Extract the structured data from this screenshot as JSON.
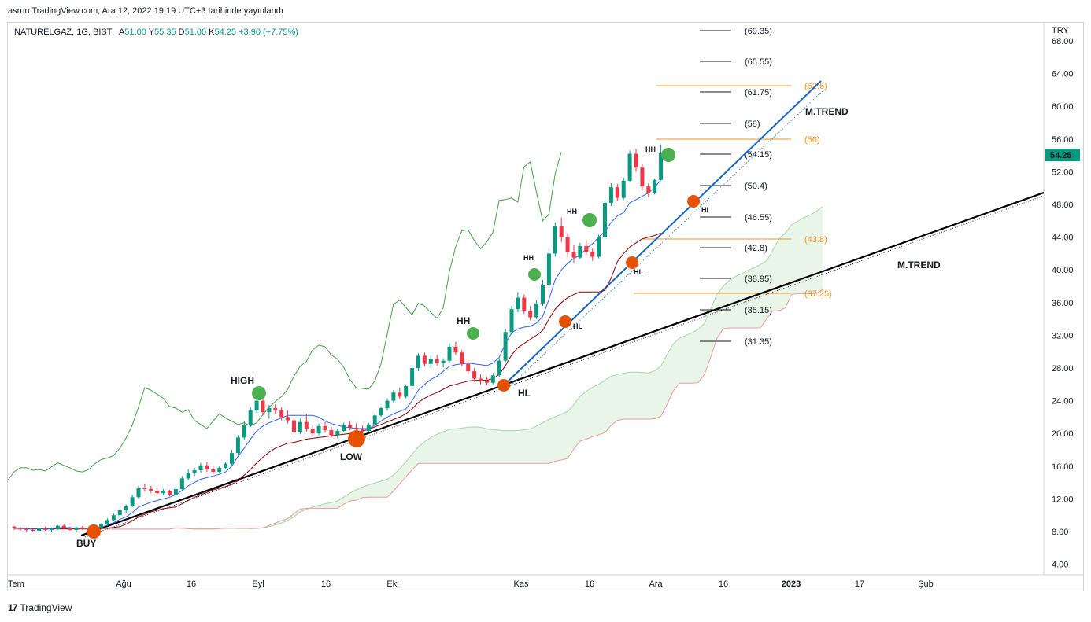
{
  "header": {
    "published": "asrnn TradingView.com, Ara 12, 2022 19:19 UTC+3 tarihinde yayınlandı"
  },
  "legend": {
    "symbol": "NATURELGAZ, 1G, BIST",
    "o_label": "A",
    "o_value": "51.00",
    "h_label": "Y",
    "h_value": "55.35",
    "l_label": "D",
    "l_value": "51.00",
    "c_label": "K",
    "c_value": "54.25",
    "change": "+3.90 (+7.75%)"
  },
  "currency": "TRY",
  "footer": {
    "brand": "TradingView"
  },
  "colors": {
    "up": "#089981",
    "down": "#f23645",
    "tenkan": "#2962ff",
    "kijun": "#8b0000",
    "chikou": "#43a047",
    "fib": "#f7931a",
    "cloud": "#e6f4e6",
    "trend": "#000000",
    "price_tag": "#089981"
  },
  "chart_data": {
    "type": "candlestick",
    "symbol": "NATURELGAZ",
    "ylim": [
      3,
      70
    ],
    "y_ticks": [
      "4.00",
      "8.00",
      "12.00",
      "16.00",
      "20.00",
      "24.00",
      "28.00",
      "32.00",
      "36.00",
      "40.00",
      "44.00",
      "48.00",
      "52.00",
      "56.00",
      "60.00",
      "64.00",
      "68.00"
    ],
    "x_ticks": [
      "Tem",
      "Ağu",
      "16",
      "Eyl",
      "16",
      "Eki",
      "Kas",
      "16",
      "Ara",
      "16",
      "2023",
      "17",
      "Şub"
    ],
    "last_price": "54.25",
    "levels": [
      "(69.35)",
      "(65.55)",
      "(61.75)",
      "(58)",
      "(54.15)",
      "(50.4)",
      "(46.55)",
      "(42.8)",
      "(38.95)",
      "(35.15)",
      "(31.35)"
    ],
    "level_values": [
      69.35,
      65.55,
      61.75,
      58,
      54.15,
      50.4,
      46.55,
      42.8,
      38.95,
      35.15,
      31.35
    ],
    "fib_levels": [
      "(62.6)",
      "(56)",
      "(43.8)",
      "(37.25)"
    ],
    "fib_values": [
      62.6,
      56,
      43.8,
      37.25
    ],
    "annotations": {
      "buy": "BUY",
      "high": "HIGH",
      "low": "LOW",
      "hl": "HL",
      "hh": "HH",
      "trend_black": "M.TREND",
      "trend_blue": "M.TREND"
    },
    "candles": [
      [
        8.6,
        8.7,
        8.2,
        8.4
      ],
      [
        8.4,
        8.6,
        8.1,
        8.3
      ],
      [
        8.3,
        8.5,
        8.0,
        8.2
      ],
      [
        8.2,
        8.4,
        7.9,
        8.1
      ],
      [
        8.1,
        8.5,
        8.0,
        8.4
      ],
      [
        8.4,
        8.6,
        8.1,
        8.2
      ],
      [
        8.2,
        8.5,
        8.0,
        8.3
      ],
      [
        8.3,
        8.8,
        8.2,
        8.7
      ],
      [
        8.7,
        8.9,
        8.3,
        8.4
      ],
      [
        8.4,
        8.6,
        8.1,
        8.2
      ],
      [
        8.2,
        8.6,
        8.0,
        8.5
      ],
      [
        8.5,
        8.7,
        8.2,
        8.3
      ],
      [
        8.3,
        8.5,
        7.9,
        8.0
      ],
      [
        8.0,
        8.5,
        7.9,
        8.4
      ],
      [
        8.4,
        9.0,
        8.3,
        8.9
      ],
      [
        8.9,
        9.6,
        8.7,
        9.4
      ],
      [
        9.4,
        10.2,
        9.3,
        10.0
      ],
      [
        10.0,
        10.8,
        9.8,
        10.6
      ],
      [
        10.6,
        11.3,
        10.3,
        11.1
      ],
      [
        11.1,
        12.5,
        11.0,
        12.2
      ],
      [
        12.2,
        13.6,
        12.0,
        13.3
      ],
      [
        13.3,
        13.8,
        12.9,
        13.2
      ],
      [
        13.2,
        13.6,
        12.7,
        13.0
      ],
      [
        13.0,
        13.3,
        12.5,
        12.7
      ],
      [
        12.7,
        13.2,
        12.4,
        13.0
      ],
      [
        13.0,
        13.1,
        12.3,
        12.5
      ],
      [
        12.5,
        13.5,
        12.4,
        13.2
      ],
      [
        13.2,
        14.8,
        13.0,
        14.5
      ],
      [
        14.5,
        15.6,
        14.3,
        15.2
      ],
      [
        15.2,
        15.8,
        14.8,
        15.5
      ],
      [
        15.5,
        16.4,
        15.2,
        16.1
      ],
      [
        16.1,
        16.5,
        15.3,
        15.6
      ],
      [
        15.6,
        16.0,
        15.0,
        15.3
      ],
      [
        15.3,
        16.0,
        15.1,
        15.8
      ],
      [
        15.8,
        16.5,
        15.6,
        16.3
      ],
      [
        16.3,
        18.0,
        16.1,
        17.6
      ],
      [
        17.6,
        19.8,
        17.4,
        19.5
      ],
      [
        19.5,
        21.5,
        19.2,
        21.0
      ],
      [
        21.0,
        23.2,
        20.8,
        22.8
      ],
      [
        22.8,
        24.8,
        22.5,
        24.0
      ],
      [
        24.0,
        24.5,
        22.2,
        22.6
      ],
      [
        22.6,
        23.5,
        21.8,
        23.1
      ],
      [
        23.1,
        23.6,
        22.4,
        22.8
      ],
      [
        22.8,
        23.2,
        21.6,
        22.0
      ],
      [
        22.0,
        22.8,
        21.2,
        21.6
      ],
      [
        21.6,
        22.0,
        19.8,
        20.2
      ],
      [
        20.2,
        21.8,
        19.9,
        21.4
      ],
      [
        21.4,
        22.4,
        20.2,
        20.6
      ],
      [
        20.6,
        21.0,
        19.6,
        20.0
      ],
      [
        20.0,
        21.2,
        19.8,
        20.9
      ],
      [
        20.9,
        21.4,
        20.1,
        20.4
      ],
      [
        20.4,
        20.8,
        19.5,
        19.8
      ],
      [
        19.8,
        20.6,
        19.4,
        20.3
      ],
      [
        20.3,
        21.3,
        20.1,
        21.0
      ],
      [
        21.0,
        21.5,
        20.4,
        20.7
      ],
      [
        20.7,
        21.2,
        20.2,
        20.5
      ],
      [
        20.5,
        21.0,
        19.9,
        20.3
      ],
      [
        20.3,
        21.3,
        20.1,
        21.1
      ],
      [
        21.1,
        22.5,
        21.0,
        22.2
      ],
      [
        22.2,
        23.3,
        22.0,
        23.1
      ],
      [
        23.1,
        24.3,
        22.8,
        24.0
      ],
      [
        24.0,
        25.3,
        23.8,
        25.0
      ],
      [
        25.0,
        25.6,
        24.2,
        24.5
      ],
      [
        24.5,
        26.0,
        24.3,
        25.8
      ],
      [
        25.8,
        28.3,
        25.6,
        28.0
      ],
      [
        28.0,
        29.8,
        27.6,
        29.5
      ],
      [
        29.5,
        29.9,
        28.2,
        28.5
      ],
      [
        28.5,
        29.5,
        28.0,
        29.1
      ],
      [
        29.1,
        29.6,
        28.3,
        28.6
      ],
      [
        28.6,
        29.2,
        28.1,
        28.9
      ],
      [
        28.9,
        31.0,
        28.7,
        30.6
      ],
      [
        30.6,
        31.2,
        29.6,
        29.9
      ],
      [
        29.9,
        30.2,
        28.2,
        28.5
      ],
      [
        28.5,
        29.0,
        27.2,
        27.6
      ],
      [
        27.6,
        28.0,
        26.3,
        26.7
      ],
      [
        26.7,
        27.2,
        26.0,
        26.4
      ],
      [
        26.4,
        26.9,
        25.9,
        26.2
      ],
      [
        26.2,
        27.4,
        26.0,
        27.1
      ],
      [
        27.1,
        29.2,
        26.9,
        28.9
      ],
      [
        28.9,
        32.8,
        28.7,
        32.4
      ],
      [
        32.4,
        35.6,
        32.1,
        35.2
      ],
      [
        35.2,
        37.3,
        34.8,
        36.6
      ],
      [
        36.6,
        37.0,
        34.6,
        35.0
      ],
      [
        35.0,
        35.6,
        33.8,
        34.2
      ],
      [
        34.2,
        36.3,
        34.0,
        35.9
      ],
      [
        35.9,
        38.8,
        35.6,
        38.2
      ],
      [
        38.2,
        42.5,
        38.0,
        42.0
      ],
      [
        42.0,
        45.8,
        41.6,
        45.3
      ],
      [
        45.3,
        46.4,
        43.4,
        44.0
      ],
      [
        44.0,
        44.5,
        41.6,
        42.2
      ],
      [
        42.2,
        43.0,
        40.9,
        41.5
      ],
      [
        41.5,
        43.3,
        41.3,
        42.9
      ],
      [
        42.9,
        43.5,
        41.8,
        42.2
      ],
      [
        42.2,
        42.6,
        41.1,
        41.6
      ],
      [
        41.6,
        44.3,
        41.4,
        44.0
      ],
      [
        44.0,
        48.6,
        43.8,
        48.2
      ],
      [
        48.2,
        50.6,
        47.8,
        50.1
      ],
      [
        50.1,
        50.5,
        48.4,
        48.8
      ],
      [
        48.8,
        51.3,
        48.6,
        50.9
      ],
      [
        50.9,
        54.6,
        50.7,
        54.2
      ],
      [
        54.2,
        54.8,
        52.0,
        52.5
      ],
      [
        52.5,
        53.0,
        49.8,
        50.2
      ],
      [
        50.2,
        50.6,
        48.9,
        49.4
      ],
      [
        49.4,
        51.2,
        49.2,
        51.0
      ],
      [
        51.0,
        55.35,
        51.0,
        54.25
      ]
    ],
    "tenkan": [
      8.45,
      8.4,
      8.35,
      8.3,
      8.35,
      8.3,
      8.35,
      8.45,
      8.5,
      8.45,
      8.4,
      8.4,
      8.35,
      8.4,
      8.5,
      8.8,
      9.1,
      9.5,
      9.8,
      10.3,
      11.0,
      11.3,
      11.6,
      11.8,
      12.0,
      12.2,
      12.5,
      13.0,
      13.6,
      14.0,
      14.4,
      14.6,
      14.8,
      15.0,
      15.3,
      16.0,
      17.2,
      18.2,
      19.3,
      20.3,
      20.9,
      21.3,
      21.6,
      21.9,
      22.2,
      22.2,
      22.2,
      22.2,
      22.2,
      22.0,
      21.5,
      21.2,
      21.0,
      20.8,
      20.7,
      20.6,
      20.6,
      20.6,
      21.0,
      21.5,
      22.0,
      22.4,
      22.7,
      23.0,
      24.0,
      25.3,
      26.0,
      26.6,
      27.0,
      27.6,
      28.2,
      28.4,
      28.5,
      28.6,
      28.5,
      28.4,
      28.3,
      28.6,
      29.3,
      31.0,
      32.3,
      32.8,
      33.0,
      33.1,
      33.5,
      34.3,
      36.4,
      38.8,
      40.0,
      40.8,
      41.4,
      41.8,
      42.6,
      43.2,
      44.0,
      44.7,
      45.8,
      46.6,
      47.0,
      48.2,
      48.6,
      49.0,
      49.4,
      50.1,
      51.0
    ],
    "kijun": [
      8.4,
      8.4,
      8.35,
      8.35,
      8.35,
      8.35,
      8.35,
      8.35,
      8.35,
      8.35,
      8.35,
      8.35,
      8.35,
      8.35,
      8.4,
      8.4,
      8.5,
      8.6,
      8.9,
      9.3,
      9.8,
      10.1,
      10.4,
      10.6,
      10.8,
      10.9,
      11.0,
      11.4,
      11.8,
      12.2,
      12.5,
      12.8,
      13.1,
      13.3,
      13.5,
      13.8,
      14.2,
      14.9,
      15.6,
      16.4,
      17.1,
      17.7,
      18.2,
      18.5,
      18.8,
      18.9,
      19.1,
      19.3,
      19.4,
      19.5,
      19.6,
      19.7,
      19.8,
      19.9,
      20.0,
      20.1,
      20.3,
      20.5,
      20.8,
      21.1,
      21.4,
      21.7,
      22.0,
      22.4,
      23.0,
      23.8,
      24.3,
      24.7,
      25.0,
      25.4,
      25.8,
      26.0,
      26.2,
      26.4,
      26.5,
      26.5,
      26.5,
      26.7,
      27.2,
      28.3,
      29.6,
      30.5,
      31.0,
      31.5,
      32.0,
      32.6,
      34.0,
      35.2,
      36.0,
      36.6,
      37.0,
      37.3,
      37.3,
      37.3,
      37.3,
      37.5,
      39.0,
      41.0,
      42.0,
      42.8,
      43.3,
      43.8,
      44.0,
      44.2,
      44.5
    ],
    "chikou": [
      14.3,
      15.3,
      15.8,
      15.8,
      15.5,
      15.6,
      15.4,
      15.9,
      16.4,
      16.1,
      15.8,
      15.4,
      15.3,
      15.6,
      16.3,
      16.8,
      17.0,
      17.3,
      18.2,
      19.4,
      21.0,
      23.2,
      25.6,
      25.3,
      24.8,
      24.3,
      23.3,
      23.1,
      22.6,
      22.9,
      21.6,
      21.1,
      20.6,
      21.5,
      22.4,
      21.9,
      21.5,
      21.1,
      21.3,
      20.9,
      21.3,
      22.3,
      23.2,
      23.9,
      24.5,
      25.4,
      27.0,
      28.2,
      28.8,
      30.2,
      30.8,
      30.6,
      29.6,
      29.1,
      28.1,
      26.6,
      25.6,
      25.5,
      25.4,
      26.4,
      28.5,
      32.1,
      35.8,
      36.3,
      35.4,
      34.5,
      35.9,
      35.6,
      34.8,
      34.1,
      35.3,
      39.8,
      42.8,
      44.8,
      44.9,
      43.6,
      42.6,
      43.4,
      44.6,
      48.5,
      48.6,
      48.8,
      48.3,
      52.6,
      53.2,
      49.5,
      46.0,
      46.8,
      51.7,
      54.4
    ]
  }
}
